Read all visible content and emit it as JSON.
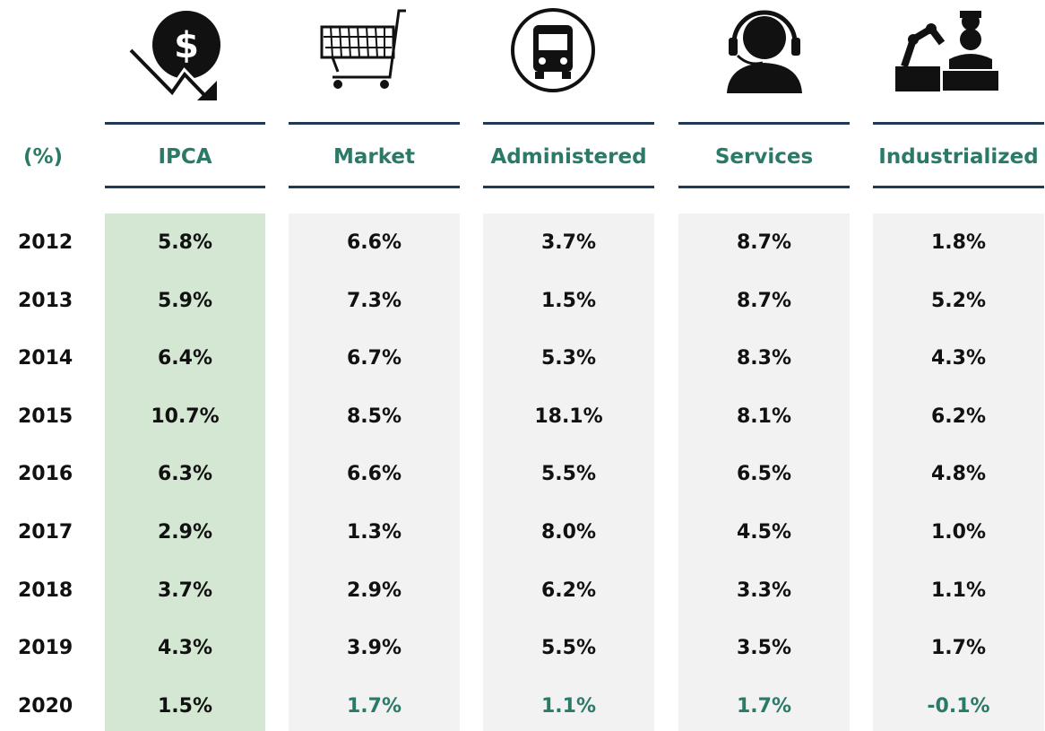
{
  "header": {
    "unit": "(%)",
    "columns": [
      "IPCA",
      "Market",
      "Administered",
      "Services",
      "Industrialized"
    ]
  },
  "table": {
    "rows": [
      [
        "2012",
        "5.8%",
        "6.6%",
        "3.7%",
        "8.7%",
        "1.8%"
      ],
      [
        "2013",
        "5.9%",
        "7.3%",
        "1.5%",
        "8.7%",
        "5.2%"
      ],
      [
        "2014",
        "6.4%",
        "6.7%",
        "5.3%",
        "8.3%",
        "4.3%"
      ],
      [
        "2015",
        "10.7%",
        "8.5%",
        "18.1%",
        "8.1%",
        "6.2%"
      ],
      [
        "2016",
        "6.3%",
        "6.6%",
        "5.5%",
        "6.5%",
        "4.8%"
      ],
      [
        "2017",
        "2.9%",
        "1.3%",
        "8.0%",
        "4.5%",
        "1.0%"
      ],
      [
        "2018",
        "3.7%",
        "2.9%",
        "6.2%",
        "3.3%",
        "1.1%"
      ],
      [
        "2019",
        "4.3%",
        "3.9%",
        "5.5%",
        "3.5%",
        "1.7%"
      ],
      [
        "2020",
        "1.5%",
        "1.7%",
        "1.1%",
        "1.7%",
        "-0.1%"
      ]
    ]
  }
}
